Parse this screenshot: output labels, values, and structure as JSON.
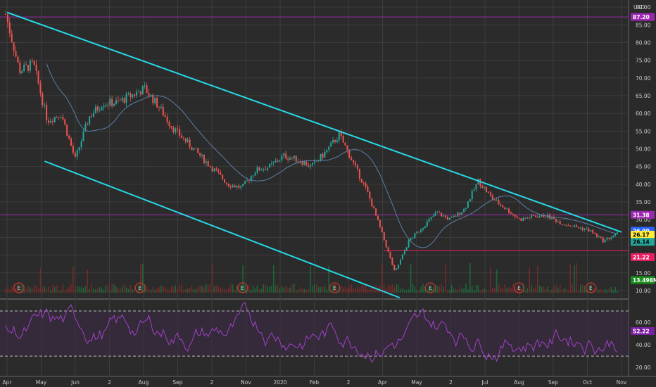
{
  "chart_data": {
    "type": "candlestick",
    "currency": "USD",
    "y_axis": {
      "ticks": [
        "90.00",
        "85.00",
        "80.00",
        "75.00",
        "70.00",
        "65.00",
        "60.00",
        "55.00",
        "50.00",
        "45.00",
        "40.00",
        "35.00",
        "30.00",
        "25.00",
        "20.00",
        "15.00",
        "10.00"
      ],
      "range": [
        8,
        92
      ]
    },
    "x_axis": {
      "ticks": [
        "Apr",
        "May",
        "Jun",
        "2",
        "Aug",
        "Sep",
        "2",
        "Nov",
        "2020",
        "Feb",
        "2",
        "Apr",
        "May",
        "2",
        "Jul",
        "Aug",
        "Sep",
        "Oct",
        "Nov"
      ]
    },
    "price_tags": [
      {
        "label": "87.20",
        "value": 87.2,
        "bg": "#9c27b0",
        "fg": "#ffffff"
      },
      {
        "label": "31.38",
        "value": 31.38,
        "bg": "#9c27b0",
        "fg": "#ffffff"
      },
      {
        "label": "26.90",
        "value": 26.9,
        "bg": "#2962ff",
        "fg": "#ffffff"
      },
      {
        "label": "26.17",
        "value": 26.17,
        "bg": "#ffeb3b",
        "fg": "#000000"
      },
      {
        "label": "26.14",
        "value": 26.14,
        "bg": "#26a69a",
        "fg": "#000000"
      },
      {
        "label": "21.22",
        "value": 21.22,
        "bg": "#e91e63",
        "fg": "#ffffff"
      },
      {
        "label": "13.498M",
        "value": null,
        "bg": "#1b8f1b",
        "fg": "#ffffff"
      }
    ],
    "horizontal_levels": [
      {
        "value": 87.2,
        "color": "#9c27b0"
      },
      {
        "value": 31.38,
        "color": "#9c27b0"
      },
      {
        "value": 21.22,
        "color": "#e91e63"
      }
    ],
    "trend_lines": [
      {
        "name": "channel-upper",
        "color": "#26d9e6",
        "points": [
          [
            "Apr",
            88.5
          ],
          [
            "Nov",
            26.5
          ]
        ]
      },
      {
        "name": "channel-lower",
        "color": "#26d9e6",
        "points": [
          [
            "May",
            46.5
          ],
          [
            "Apr 2020",
            8
          ]
        ]
      }
    ],
    "earnings_markers": [
      "May",
      "Aug",
      "Nov",
      "Feb",
      "Jul",
      "Sep",
      "Oct"
    ],
    "price_series": {
      "points": [
        [
          "Apr",
          88
        ],
        [
          "Apr",
          72
        ],
        [
          "Apr",
          74
        ],
        [
          "May",
          58
        ],
        [
          "May",
          60
        ],
        [
          "May",
          47
        ],
        [
          "Jun",
          59
        ],
        [
          "Jun",
          63
        ],
        [
          "2",
          63
        ],
        [
          "2",
          65
        ],
        [
          "2",
          67
        ],
        [
          "Aug",
          62
        ],
        [
          "Aug",
          56
        ],
        [
          "Aug",
          52
        ],
        [
          "Sep",
          48
        ],
        [
          "Sep",
          44
        ],
        [
          "2",
          40
        ],
        [
          "2",
          39
        ],
        [
          "Nov",
          44
        ],
        [
          "Nov",
          45
        ],
        [
          "Nov",
          48
        ],
        [
          "2020",
          47
        ],
        [
          "2020",
          45
        ],
        [
          "Feb",
          49
        ],
        [
          "Feb",
          54
        ],
        [
          "Feb",
          46
        ],
        [
          "2",
          38
        ],
        [
          "2",
          27
        ],
        [
          "2",
          15
        ],
        [
          "Apr",
          24
        ],
        [
          "Apr",
          28
        ],
        [
          "May",
          32
        ],
        [
          "May",
          30
        ],
        [
          "2",
          33
        ],
        [
          "2",
          41
        ],
        [
          "Jul",
          36
        ],
        [
          "Jul",
          33
        ],
        [
          "Aug",
          30
        ],
        [
          "Aug",
          31
        ],
        [
          "Sep",
          31
        ],
        [
          "Sep",
          29
        ],
        [
          "Oct",
          28
        ],
        [
          "Oct",
          27
        ],
        [
          "Nov",
          24
        ],
        [
          "Nov",
          26
        ]
      ]
    },
    "oscillator": {
      "ticks": [
        "60.00",
        "40.00",
        "20.00"
      ],
      "range": [
        12,
        80
      ],
      "upper_band": 70,
      "lower_band": 30,
      "current_label": "52.22",
      "current_value": 52.22
    }
  }
}
